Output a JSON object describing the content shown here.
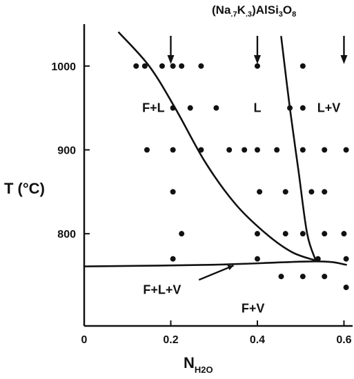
{
  "chart_data": {
    "type": "scatter",
    "title": "(Na.7K.3)AlSi3O8",
    "title_parts": {
      "main_a": "(Na",
      "sub_a": ".7",
      "main_b": "K",
      "sub_b": ".3",
      "main_c": ")AlSi",
      "sub_c": "3",
      "main_d": "O",
      "sub_d": "8"
    },
    "xlabel": "N",
    "xlabel_sub": "H2O",
    "ylabel": "T (°C)",
    "xlim": [
      0,
      0.62
    ],
    "ylim": [
      690,
      1050
    ],
    "x_ticks": [
      {
        "value": 0,
        "label": "0"
      },
      {
        "value": 0.2,
        "label": "0.2"
      },
      {
        "value": 0.4,
        "label": "0.4"
      },
      {
        "value": 0.6,
        "label": "0.6"
      }
    ],
    "y_ticks": [
      {
        "value": 800,
        "label": "800"
      },
      {
        "value": 900,
        "label": "900"
      },
      {
        "value": 1000,
        "label": "1000"
      }
    ],
    "arrows_at_x": [
      0.2,
      0.4,
      0.6
    ],
    "points": [
      {
        "x": 0.12,
        "y": 1000
      },
      {
        "x": 0.14,
        "y": 1000
      },
      {
        "x": 0.18,
        "y": 1000
      },
      {
        "x": 0.205,
        "y": 1000
      },
      {
        "x": 0.225,
        "y": 1000
      },
      {
        "x": 0.27,
        "y": 1000
      },
      {
        "x": 0.4,
        "y": 1000
      },
      {
        "x": 0.505,
        "y": 1000
      },
      {
        "x": 0.205,
        "y": 950
      },
      {
        "x": 0.245,
        "y": 950
      },
      {
        "x": 0.305,
        "y": 950
      },
      {
        "x": 0.475,
        "y": 950
      },
      {
        "x": 0.505,
        "y": 950
      },
      {
        "x": 0.145,
        "y": 900
      },
      {
        "x": 0.205,
        "y": 900
      },
      {
        "x": 0.27,
        "y": 900
      },
      {
        "x": 0.335,
        "y": 900
      },
      {
        "x": 0.37,
        "y": 900
      },
      {
        "x": 0.4,
        "y": 900
      },
      {
        "x": 0.445,
        "y": 900
      },
      {
        "x": 0.505,
        "y": 900
      },
      {
        "x": 0.555,
        "y": 900
      },
      {
        "x": 0.605,
        "y": 900
      },
      {
        "x": 0.205,
        "y": 850
      },
      {
        "x": 0.405,
        "y": 850
      },
      {
        "x": 0.465,
        "y": 850
      },
      {
        "x": 0.525,
        "y": 850
      },
      {
        "x": 0.555,
        "y": 850
      },
      {
        "x": 0.225,
        "y": 800
      },
      {
        "x": 0.4,
        "y": 800
      },
      {
        "x": 0.465,
        "y": 800
      },
      {
        "x": 0.505,
        "y": 800
      },
      {
        "x": 0.555,
        "y": 800
      },
      {
        "x": 0.6,
        "y": 800
      },
      {
        "x": 0.205,
        "y": 770
      },
      {
        "x": 0.4,
        "y": 770
      },
      {
        "x": 0.54,
        "y": 770
      },
      {
        "x": 0.605,
        "y": 770
      },
      {
        "x": 0.455,
        "y": 749
      },
      {
        "x": 0.505,
        "y": 749
      },
      {
        "x": 0.555,
        "y": 749
      },
      {
        "x": 0.605,
        "y": 736
      }
    ],
    "curves": [
      {
        "name": "liquidus-F",
        "points": [
          [
            0.08,
            1040
          ],
          [
            0.15,
            1000
          ],
          [
            0.21,
            950
          ],
          [
            0.28,
            885
          ],
          [
            0.35,
            835
          ],
          [
            0.42,
            800
          ],
          [
            0.48,
            778
          ],
          [
            0.535,
            768
          ]
        ]
      },
      {
        "name": "liquidus-V",
        "points": [
          [
            0.455,
            1035
          ],
          [
            0.475,
            950
          ],
          [
            0.495,
            875
          ],
          [
            0.515,
            800
          ],
          [
            0.535,
            768
          ]
        ]
      },
      {
        "name": "solidus",
        "points": [
          [
            0.0,
            761
          ],
          [
            0.3,
            763
          ],
          [
            0.535,
            767
          ],
          [
            0.605,
            763
          ]
        ]
      }
    ],
    "regions": [
      {
        "label": "F+L",
        "x": 0.16,
        "y": 950
      },
      {
        "label": "L",
        "x": 0.4,
        "y": 950
      },
      {
        "label": "L+V",
        "x": 0.565,
        "y": 950
      },
      {
        "label": "F+L+V",
        "x": 0.18,
        "y": 733
      },
      {
        "label": "F+V",
        "x": 0.39,
        "y": 711
      }
    ],
    "leader": {
      "from": [
        0.265,
        745
      ],
      "to": [
        0.345,
        762
      ]
    }
  }
}
